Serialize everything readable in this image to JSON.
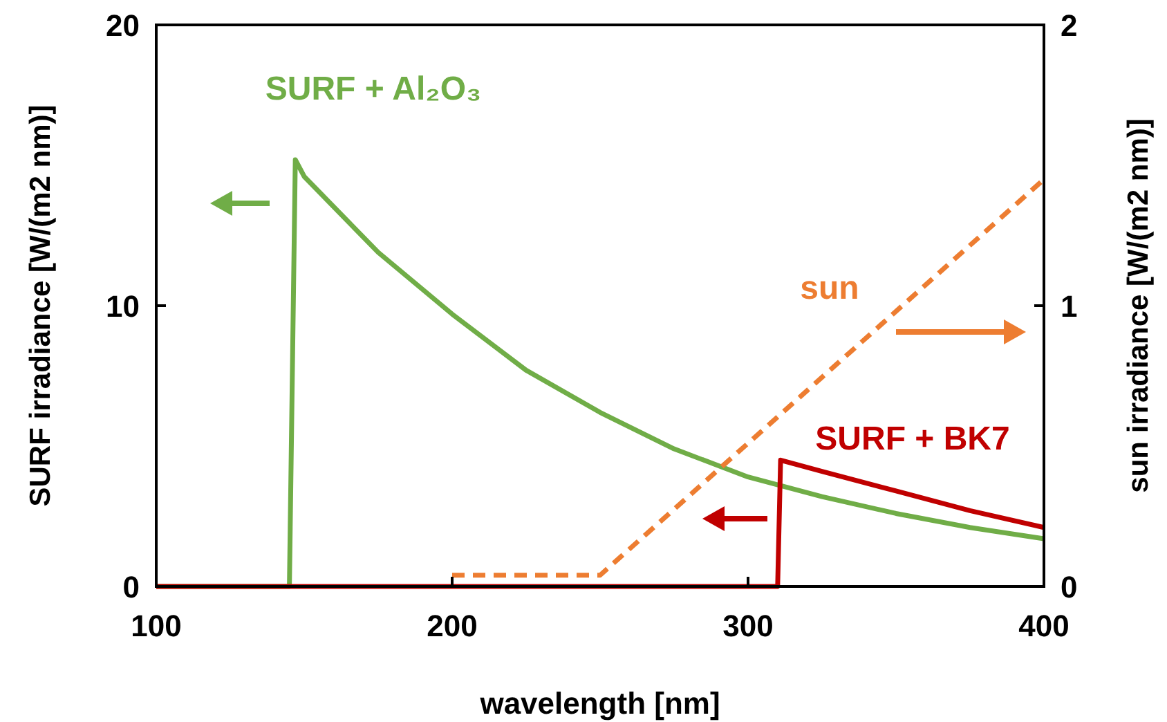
{
  "chart_data": {
    "type": "line",
    "xlabel": "wavelength [nm]",
    "ylabel": "SURF irradiance [W/(m2 nm)]",
    "y2label": "sun irradiance [W/(m2 nm)]",
    "xlim": [
      100,
      400
    ],
    "xticks": [
      100,
      200,
      300,
      400
    ],
    "ylim": [
      0,
      20
    ],
    "yticks": [
      0,
      10,
      20
    ],
    "y2lim": [
      0,
      2
    ],
    "y2ticks": [
      0,
      1,
      2
    ],
    "grid": false,
    "series": [
      {
        "name": "SURF + Al₂O₃",
        "color": "#70ad47",
        "x": [
          100,
          145,
          147,
          150,
          175,
          200,
          225,
          250,
          275,
          300,
          325,
          350,
          375,
          400
        ],
        "values": [
          0,
          0,
          15.2,
          14.6,
          11.9,
          9.7,
          7.7,
          6.2,
          4.9,
          3.9,
          3.2,
          2.6,
          2.1,
          1.7
        ]
      },
      {
        "name": "sun",
        "color": "#ed7d31",
        "axis": "y2",
        "line_style": "dashed",
        "x": [
          200,
          250,
          400
        ],
        "values": [
          0.04,
          0.04,
          1.45
        ]
      },
      {
        "name": "SURF + BK7",
        "color": "#c00000",
        "x": [
          100,
          310,
          311,
          325,
          350,
          375,
          400
        ],
        "values": [
          0,
          0,
          4.5,
          4.1,
          3.4,
          2.7,
          2.1
        ]
      }
    ]
  }
}
